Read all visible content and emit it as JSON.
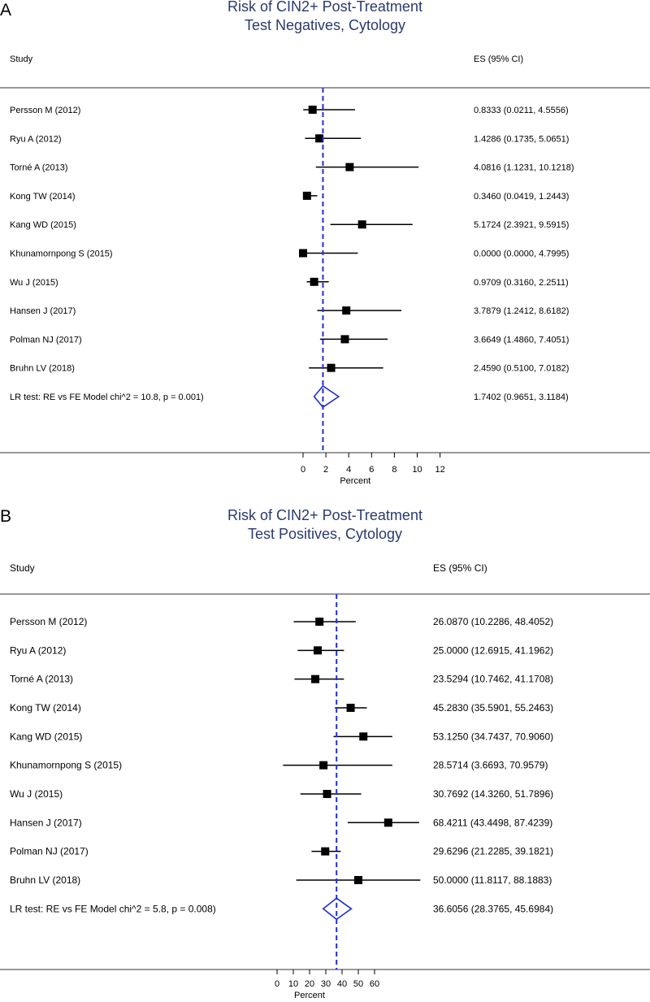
{
  "chart_data": [
    {
      "type": "forest",
      "panel_label": "A",
      "title": "Risk of CIN2+ Post-Treatment",
      "subtitle": "Test Negatives, Cytology",
      "study_header": "Study",
      "es_header": "ES (95% CI)",
      "xlabel": "Percent",
      "xticks": [
        0,
        2,
        4,
        6,
        8,
        10,
        12
      ],
      "xlim": [
        0,
        12
      ],
      "pooled_line": 1.7402,
      "studies": [
        {
          "label": "Persson M (2012)",
          "es": 0.8333,
          "lo": 0.0211,
          "hi": 4.5556,
          "ci_text": "0.8333 (0.0211, 4.5556)"
        },
        {
          "label": "Ryu A (2012)",
          "es": 1.4286,
          "lo": 0.1735,
          "hi": 5.0651,
          "ci_text": "1.4286 (0.1735, 5.0651)"
        },
        {
          "label": "Torné A (2013)",
          "es": 4.0816,
          "lo": 1.1231,
          "hi": 10.1218,
          "ci_text": "4.0816 (1.1231, 10.1218)"
        },
        {
          "label": "Kong TW (2014)",
          "es": 0.346,
          "lo": 0.0419,
          "hi": 1.2443,
          "ci_text": "0.3460 (0.0419, 1.2443)"
        },
        {
          "label": "Kang WD (2015)",
          "es": 5.1724,
          "lo": 2.3921,
          "hi": 9.5915,
          "ci_text": "5.1724 (2.3921, 9.5915)"
        },
        {
          "label": "Khunamornpong S (2015)",
          "es": 0.0,
          "lo": 0.0,
          "hi": 4.7995,
          "ci_text": "0.0000 (0.0000, 4.7995)"
        },
        {
          "label": "Wu J (2015)",
          "es": 0.9709,
          "lo": 0.316,
          "hi": 2.2511,
          "ci_text": "0.9709 (0.3160, 2.2511)"
        },
        {
          "label": "Hansen J (2017)",
          "es": 3.7879,
          "lo": 1.2412,
          "hi": 8.6182,
          "ci_text": "3.7879 (1.2412, 8.6182)"
        },
        {
          "label": "Polman NJ (2017)",
          "es": 3.6649,
          "lo": 1.486,
          "hi": 7.4051,
          "ci_text": "3.6649 (1.4860, 7.4051)"
        },
        {
          "label": "Bruhn LV (2018)",
          "es": 2.459,
          "lo": 0.51,
          "hi": 7.0182,
          "ci_text": "2.4590 (0.5100, 7.0182)"
        }
      ],
      "pooled": {
        "label": "LR test: RE vs FE Model chi^2 = 10.8, p = 0.001)",
        "es": 1.7402,
        "lo": 0.9651,
        "hi": 3.1184,
        "ci_text": "1.7402 (0.9651, 3.1184)"
      },
      "colors": {
        "pooled_line": "#1f2fd6",
        "diamond": "#1f2fd6",
        "marker": "#000000",
        "title": "#2b3a6e"
      }
    },
    {
      "type": "forest",
      "panel_label": "B",
      "title": "Risk of CIN2+ Post-Treatment",
      "subtitle": "Test Positives, Cytology",
      "study_header": "Study",
      "es_header": "ES (95% CI)",
      "xlabel": "Percent",
      "xticks": [
        0,
        10,
        20,
        30,
        40,
        50,
        60
      ],
      "xlim": [
        0,
        60
      ],
      "pooled_line": 36.6056,
      "studies": [
        {
          "label": "Persson M (2012)",
          "es": 26.087,
          "lo": 10.2286,
          "hi": 48.4052,
          "ci_text": "26.0870 (10.2286, 48.4052)"
        },
        {
          "label": "Ryu A (2012)",
          "es": 25.0,
          "lo": 12.6915,
          "hi": 41.1962,
          "ci_text": "25.0000 (12.6915, 41.1962)"
        },
        {
          "label": "Torné A (2013)",
          "es": 23.5294,
          "lo": 10.7462,
          "hi": 41.1708,
          "ci_text": "23.5294 (10.7462, 41.1708)"
        },
        {
          "label": "Kong TW (2014)",
          "es": 45.283,
          "lo": 35.5901,
          "hi": 55.2463,
          "ci_text": "45.2830 (35.5901, 55.2463)"
        },
        {
          "label": "Kang WD (2015)",
          "es": 53.125,
          "lo": 34.7437,
          "hi": 70.906,
          "ci_text": "53.1250 (34.7437, 70.9060)"
        },
        {
          "label": "Khunamornpong S (2015)",
          "es": 28.5714,
          "lo": 3.6693,
          "hi": 70.9579,
          "ci_text": "28.5714 (3.6693, 70.9579)"
        },
        {
          "label": "Wu J (2015)",
          "es": 30.7692,
          "lo": 14.326,
          "hi": 51.7896,
          "ci_text": "30.7692 (14.3260, 51.7896)"
        },
        {
          "label": "Hansen J (2017)",
          "es": 68.4211,
          "lo": 43.4498,
          "hi": 87.4239,
          "ci_text": "68.4211 (43.4498, 87.4239)"
        },
        {
          "label": "Polman NJ (2017)",
          "es": 29.6296,
          "lo": 21.2285,
          "hi": 39.1821,
          "ci_text": "29.6296 (21.2285, 39.1821)"
        },
        {
          "label": "Bruhn LV (2018)",
          "es": 50.0,
          "lo": 11.8117,
          "hi": 88.1883,
          "ci_text": "50.0000 (11.8117, 88.1883)"
        }
      ],
      "pooled": {
        "label": "LR test: RE vs FE Model chi^2 = 5.8, p = 0.008)",
        "es": 36.6056,
        "lo": 28.3765,
        "hi": 45.6984,
        "ci_text": "36.6056 (28.3765, 45.6984)"
      },
      "colors": {
        "pooled_line": "#1f2fd6",
        "diamond": "#1f2fd6",
        "marker": "#000000",
        "title": "#2b3a6e"
      }
    }
  ]
}
